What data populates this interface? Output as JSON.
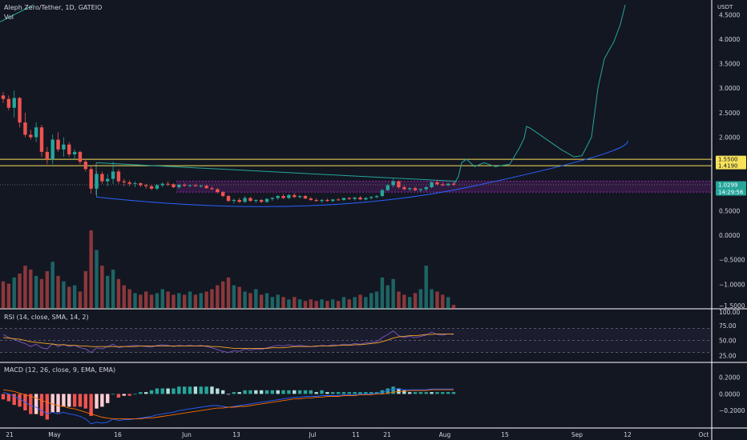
{
  "header": {
    "symbol_line": "Aleph Zero/Tether, 1D, GATEIO",
    "volume_label": "Vol",
    "currency": "USDT"
  },
  "rsi_panel": {
    "label": "RSI (14, close, SMA, 14, 2)"
  },
  "macd_panel": {
    "label": "MACD (12, 26, close, 9, EMA, EMA)"
  },
  "price_badges": [
    {
      "label": "1.5500",
      "color": "#f7e25a",
      "text_color": "#131722"
    },
    {
      "label": "1.4190",
      "color": "#f7e25a",
      "text_color": "#131722"
    },
    {
      "label": "1.0299",
      "color": "#26a69a",
      "text_color": "#ffffff"
    },
    {
      "label": "14:29:56",
      "color": "#26a69a",
      "text_color": "#ffffff"
    }
  ],
  "colors": {
    "background": "#131722",
    "up": "#26a69a",
    "down": "#ef5350",
    "horizontal_lines": "#f7e25a",
    "zone": "#9c27b0",
    "curve_blue": "#2962ff",
    "projection": "#26a69a",
    "rsi_line": "#7e57c2",
    "rsi_ma": "#f5a623",
    "macd_line": "#2962ff",
    "signal_line": "#ff6d00"
  },
  "chart_data": [
    {
      "type": "candlestick",
      "panel": "price",
      "y_axis_ticks": [
        "4.5000",
        "4.0000",
        "3.5000",
        "3.0000",
        "2.5000",
        "2.0000",
        "1.5500",
        "1.4190",
        "1.0299",
        "0.5000",
        "0.0000",
        "−0.5000",
        "−1.0000",
        "−1.5000"
      ],
      "x_axis_ticks": [
        "21",
        "May",
        "16",
        "Jun",
        "13",
        "Jul",
        "11",
        "21",
        "Aug",
        "15",
        "Sep",
        "12",
        "Oct"
      ],
      "horizontal_levels": [
        1.55,
        1.419
      ],
      "last_price": 1.0299,
      "countdown": "14:29:56",
      "candles": [
        {
          "o": 2.85,
          "h": 2.92,
          "l": 2.7,
          "c": 2.78
        },
        {
          "o": 2.78,
          "h": 2.85,
          "l": 2.55,
          "c": 2.6
        },
        {
          "o": 2.6,
          "h": 2.95,
          "l": 2.4,
          "c": 2.8
        },
        {
          "o": 2.8,
          "h": 2.82,
          "l": 2.2,
          "c": 2.3
        },
        {
          "o": 2.3,
          "h": 2.5,
          "l": 2.0,
          "c": 2.05
        },
        {
          "o": 2.05,
          "h": 2.15,
          "l": 1.95,
          "c": 2.0
        },
        {
          "o": 2.0,
          "h": 2.3,
          "l": 1.9,
          "c": 2.2
        },
        {
          "o": 2.2,
          "h": 2.25,
          "l": 1.6,
          "c": 1.7
        },
        {
          "o": 1.7,
          "h": 1.8,
          "l": 1.45,
          "c": 1.55
        },
        {
          "o": 1.55,
          "h": 2.05,
          "l": 1.45,
          "c": 1.95
        },
        {
          "o": 1.95,
          "h": 2.1,
          "l": 1.7,
          "c": 1.75
        },
        {
          "o": 1.75,
          "h": 2.0,
          "l": 1.6,
          "c": 1.85
        },
        {
          "o": 1.85,
          "h": 1.9,
          "l": 1.6,
          "c": 1.65
        },
        {
          "o": 1.65,
          "h": 1.75,
          "l": 1.55,
          "c": 1.7
        },
        {
          "o": 1.7,
          "h": 1.72,
          "l": 1.45,
          "c": 1.5
        },
        {
          "o": 1.5,
          "h": 1.55,
          "l": 1.3,
          "c": 1.35
        },
        {
          "o": 1.35,
          "h": 1.4,
          "l": 0.85,
          "c": 0.95
        },
        {
          "o": 0.95,
          "h": 1.3,
          "l": 0.78,
          "c": 1.25
        },
        {
          "o": 1.25,
          "h": 1.3,
          "l": 1.05,
          "c": 1.1
        },
        {
          "o": 1.1,
          "h": 1.25,
          "l": 1.0,
          "c": 1.15
        },
        {
          "o": 1.15,
          "h": 1.5,
          "l": 1.05,
          "c": 1.3
        },
        {
          "o": 1.3,
          "h": 1.35,
          "l": 1.05,
          "c": 1.1
        },
        {
          "o": 1.1,
          "h": 1.15,
          "l": 1.0,
          "c": 1.08
        },
        {
          "o": 1.08,
          "h": 1.12,
          "l": 1.0,
          "c": 1.05
        },
        {
          "o": 1.05,
          "h": 1.1,
          "l": 0.98,
          "c": 1.06
        },
        {
          "o": 1.06,
          "h": 1.08,
          "l": 0.98,
          "c": 1.02
        },
        {
          "o": 1.02,
          "h": 1.05,
          "l": 0.95,
          "c": 1.0
        },
        {
          "o": 1.0,
          "h": 1.03,
          "l": 0.92,
          "c": 0.95
        },
        {
          "o": 0.95,
          "h": 1.05,
          "l": 0.92,
          "c": 1.02
        },
        {
          "o": 1.02,
          "h": 1.08,
          "l": 0.98,
          "c": 1.05
        },
        {
          "o": 1.05,
          "h": 1.1,
          "l": 1.0,
          "c": 1.04
        },
        {
          "o": 1.04,
          "h": 1.06,
          "l": 0.96,
          "c": 0.98
        },
        {
          "o": 0.98,
          "h": 1.05,
          "l": 0.95,
          "c": 1.03
        },
        {
          "o": 1.03,
          "h": 1.06,
          "l": 0.99,
          "c": 1.01
        },
        {
          "o": 1.01,
          "h": 1.04,
          "l": 0.98,
          "c": 1.02
        },
        {
          "o": 1.02,
          "h": 1.05,
          "l": 0.99,
          "c": 1.0
        },
        {
          "o": 1.0,
          "h": 1.03,
          "l": 0.97,
          "c": 1.01
        },
        {
          "o": 1.01,
          "h": 1.03,
          "l": 0.95,
          "c": 0.96
        },
        {
          "o": 0.96,
          "h": 1.0,
          "l": 0.92,
          "c": 0.94
        },
        {
          "o": 0.94,
          "h": 0.96,
          "l": 0.85,
          "c": 0.88
        },
        {
          "o": 0.88,
          "h": 0.9,
          "l": 0.78,
          "c": 0.8
        },
        {
          "o": 0.8,
          "h": 0.82,
          "l": 0.68,
          "c": 0.7
        },
        {
          "o": 0.7,
          "h": 0.75,
          "l": 0.65,
          "c": 0.72
        },
        {
          "o": 0.72,
          "h": 0.76,
          "l": 0.66,
          "c": 0.68
        },
        {
          "o": 0.68,
          "h": 0.8,
          "l": 0.66,
          "c": 0.76
        },
        {
          "o": 0.76,
          "h": 0.78,
          "l": 0.68,
          "c": 0.7
        },
        {
          "o": 0.7,
          "h": 0.73,
          "l": 0.66,
          "c": 0.72
        },
        {
          "o": 0.72,
          "h": 0.74,
          "l": 0.66,
          "c": 0.68
        },
        {
          "o": 0.68,
          "h": 0.76,
          "l": 0.66,
          "c": 0.74
        },
        {
          "o": 0.74,
          "h": 0.78,
          "l": 0.7,
          "c": 0.76
        },
        {
          "o": 0.76,
          "h": 0.82,
          "l": 0.72,
          "c": 0.8
        },
        {
          "o": 0.8,
          "h": 0.84,
          "l": 0.74,
          "c": 0.76
        },
        {
          "o": 0.76,
          "h": 0.84,
          "l": 0.74,
          "c": 0.82
        },
        {
          "o": 0.82,
          "h": 0.86,
          "l": 0.76,
          "c": 0.78
        },
        {
          "o": 0.78,
          "h": 0.82,
          "l": 0.75,
          "c": 0.8
        },
        {
          "o": 0.8,
          "h": 0.82,
          "l": 0.74,
          "c": 0.75
        },
        {
          "o": 0.75,
          "h": 0.78,
          "l": 0.7,
          "c": 0.72
        },
        {
          "o": 0.72,
          "h": 0.75,
          "l": 0.68,
          "c": 0.7
        },
        {
          "o": 0.7,
          "h": 0.74,
          "l": 0.66,
          "c": 0.72
        },
        {
          "o": 0.72,
          "h": 0.75,
          "l": 0.68,
          "c": 0.7
        },
        {
          "o": 0.7,
          "h": 0.74,
          "l": 0.67,
          "c": 0.73
        },
        {
          "o": 0.73,
          "h": 0.76,
          "l": 0.7,
          "c": 0.72
        },
        {
          "o": 0.72,
          "h": 0.77,
          "l": 0.7,
          "c": 0.76
        },
        {
          "o": 0.76,
          "h": 0.78,
          "l": 0.72,
          "c": 0.74
        },
        {
          "o": 0.74,
          "h": 0.78,
          "l": 0.71,
          "c": 0.77
        },
        {
          "o": 0.77,
          "h": 0.8,
          "l": 0.72,
          "c": 0.73
        },
        {
          "o": 0.73,
          "h": 0.78,
          "l": 0.71,
          "c": 0.76
        },
        {
          "o": 0.76,
          "h": 0.8,
          "l": 0.73,
          "c": 0.78
        },
        {
          "o": 0.78,
          "h": 0.82,
          "l": 0.75,
          "c": 0.8
        },
        {
          "o": 0.8,
          "h": 0.95,
          "l": 0.78,
          "c": 0.92
        },
        {
          "o": 0.92,
          "h": 1.05,
          "l": 0.9,
          "c": 1.02
        },
        {
          "o": 1.02,
          "h": 1.15,
          "l": 0.98,
          "c": 1.1
        },
        {
          "o": 1.1,
          "h": 1.12,
          "l": 0.95,
          "c": 0.98
        },
        {
          "o": 0.98,
          "h": 1.02,
          "l": 0.92,
          "c": 0.94
        },
        {
          "o": 0.94,
          "h": 0.98,
          "l": 0.9,
          "c": 0.96
        },
        {
          "o": 0.96,
          "h": 0.99,
          "l": 0.9,
          "c": 0.92
        },
        {
          "o": 0.92,
          "h": 0.96,
          "l": 0.88,
          "c": 0.94
        },
        {
          "o": 0.94,
          "h": 1.0,
          "l": 0.9,
          "c": 0.98
        },
        {
          "o": 0.98,
          "h": 1.1,
          "l": 0.96,
          "c": 1.08
        },
        {
          "o": 1.08,
          "h": 1.12,
          "l": 1.02,
          "c": 1.04
        },
        {
          "o": 1.04,
          "h": 1.08,
          "l": 1.0,
          "c": 1.02
        },
        {
          "o": 1.02,
          "h": 1.07,
          "l": 1.0,
          "c": 1.05
        },
        {
          "o": 1.05,
          "h": 1.08,
          "l": 1.01,
          "c": 1.03
        }
      ],
      "volume": [
        0.35,
        0.32,
        0.4,
        0.45,
        0.55,
        0.5,
        0.42,
        0.38,
        0.48,
        0.6,
        0.42,
        0.35,
        0.28,
        0.3,
        0.22,
        0.48,
        1.0,
        0.75,
        0.55,
        0.42,
        0.5,
        0.38,
        0.3,
        0.25,
        0.2,
        0.18,
        0.22,
        0.18,
        0.2,
        0.25,
        0.22,
        0.18,
        0.2,
        0.18,
        0.22,
        0.18,
        0.2,
        0.22,
        0.25,
        0.3,
        0.35,
        0.4,
        0.3,
        0.28,
        0.22,
        0.2,
        0.25,
        0.18,
        0.2,
        0.15,
        0.18,
        0.15,
        0.12,
        0.15,
        0.12,
        0.1,
        0.12,
        0.1,
        0.12,
        0.1,
        0.12,
        0.1,
        0.15,
        0.12,
        0.15,
        0.18,
        0.15,
        0.2,
        0.22,
        0.4,
        0.3,
        0.38,
        0.22,
        0.18,
        0.15,
        0.2,
        0.25,
        0.55,
        0.25,
        0.22,
        0.18,
        0.15,
        0.05
      ]
    },
    {
      "type": "line",
      "panel": "rsi",
      "y_axis_ticks": [
        "100.00",
        "75.00",
        "50.00",
        "25.00"
      ],
      "band_levels": [
        70,
        50,
        30
      ],
      "series": [
        {
          "values": [
            60,
            55,
            52,
            48,
            45,
            40,
            44,
            38,
            36,
            45,
            40,
            44,
            40,
            42,
            38,
            36,
            30,
            38,
            36,
            40,
            44,
            38,
            40,
            41,
            42,
            41,
            40,
            39,
            42,
            43,
            42,
            40,
            42,
            41,
            42,
            41,
            42,
            40,
            38,
            35,
            32,
            30,
            33,
            32,
            36,
            34,
            36,
            35,
            38,
            40,
            42,
            41,
            43,
            41,
            42,
            41,
            40,
            40,
            42,
            41,
            43,
            42,
            44,
            43,
            45,
            44,
            46,
            47,
            48,
            55,
            60,
            66,
            58,
            55,
            57,
            55,
            57,
            59,
            64,
            60,
            59,
            61,
            60
          ]
        },
        {
          "values": [
            55,
            54,
            53,
            52,
            50,
            48,
            47,
            46,
            45,
            44,
            43,
            43,
            42,
            42,
            41,
            41,
            40,
            40,
            40,
            40,
            40,
            40,
            40,
            40,
            40,
            41,
            41,
            41,
            41,
            41,
            41,
            41,
            41,
            41,
            41,
            41,
            41,
            41,
            40,
            40,
            39,
            38,
            37,
            37,
            37,
            37,
            37,
            37,
            37,
            38,
            38,
            38,
            39,
            40,
            40,
            40,
            40,
            41,
            41,
            41,
            41,
            42,
            42,
            42,
            43,
            43,
            44,
            45,
            46,
            48,
            51,
            54,
            56,
            57,
            58,
            58,
            59,
            60,
            60,
            61,
            61,
            61,
            61
          ]
        }
      ]
    },
    {
      "type": "line",
      "panel": "macd",
      "y_axis_ticks": [
        "0.2000",
        "0.0000",
        "−0.2000"
      ],
      "series": [
        {
          "values": [
            0.02,
            0.0,
            -0.03,
            -0.06,
            -0.1,
            -0.14,
            -0.16,
            -0.2,
            -0.24,
            -0.22,
            -0.24,
            -0.22,
            -0.24,
            -0.25,
            -0.27,
            -0.3,
            -0.36,
            -0.34,
            -0.35,
            -0.34,
            -0.3,
            -0.32,
            -0.31,
            -0.31,
            -0.3,
            -0.29,
            -0.28,
            -0.27,
            -0.25,
            -0.24,
            -0.23,
            -0.22,
            -0.2,
            -0.19,
            -0.18,
            -0.17,
            -0.16,
            -0.15,
            -0.14,
            -0.14,
            -0.15,
            -0.16,
            -0.15,
            -0.14,
            -0.13,
            -0.12,
            -0.11,
            -0.1,
            -0.09,
            -0.08,
            -0.07,
            -0.06,
            -0.05,
            -0.04,
            -0.04,
            -0.03,
            -0.03,
            -0.03,
            -0.02,
            -0.02,
            -0.02,
            -0.02,
            -0.01,
            -0.01,
            -0.01,
            0.0,
            0.0,
            0.0,
            0.01,
            0.02,
            0.04,
            0.06,
            0.06,
            0.05,
            0.05,
            0.05,
            0.05,
            0.05,
            0.06,
            0.06,
            0.06,
            0.06,
            0.06
          ]
        },
        {
          "values": [
            0.05,
            0.04,
            0.03,
            0.01,
            -0.01,
            -0.03,
            -0.05,
            -0.08,
            -0.1,
            -0.12,
            -0.14,
            -0.15,
            -0.17,
            -0.18,
            -0.2,
            -0.22,
            -0.24,
            -0.26,
            -0.28,
            -0.29,
            -0.3,
            -0.3,
            -0.3,
            -0.3,
            -0.3,
            -0.3,
            -0.29,
            -0.29,
            -0.28,
            -0.27,
            -0.26,
            -0.25,
            -0.24,
            -0.23,
            -0.22,
            -0.21,
            -0.2,
            -0.19,
            -0.18,
            -0.17,
            -0.17,
            -0.16,
            -0.16,
            -0.15,
            -0.15,
            -0.14,
            -0.13,
            -0.12,
            -0.11,
            -0.1,
            -0.09,
            -0.08,
            -0.07,
            -0.06,
            -0.06,
            -0.05,
            -0.05,
            -0.04,
            -0.04,
            -0.03,
            -0.03,
            -0.03,
            -0.02,
            -0.02,
            -0.02,
            -0.01,
            -0.01,
            -0.01,
            0.0,
            0.0,
            0.01,
            0.02,
            0.03,
            0.03,
            0.04,
            0.04,
            0.04,
            0.04,
            0.05,
            0.05,
            0.05,
            0.05,
            0.05
          ]
        }
      ]
    }
  ]
}
